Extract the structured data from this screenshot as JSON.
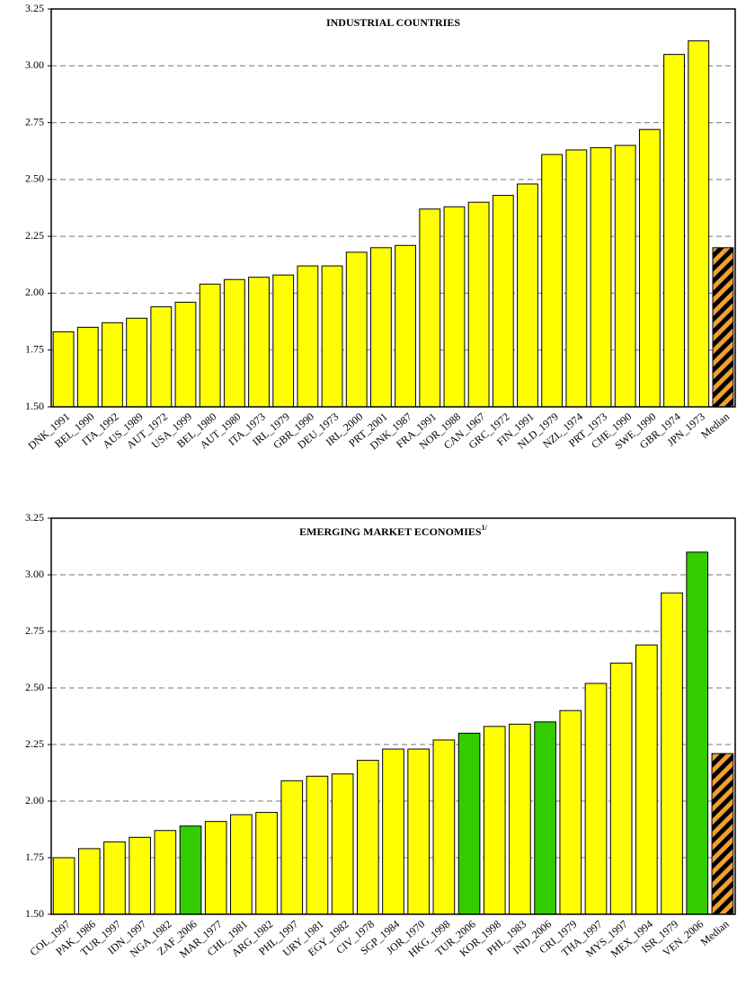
{
  "chart_data": [
    {
      "type": "bar",
      "title": "INDUSTRIAL COUNTRIES",
      "categories": [
        "DNK_1991",
        "BEL_1990",
        "ITA_1992",
        "AUS_1989",
        "AUT_1972",
        "USA_1999",
        "BEL_1980",
        "AUT_1980",
        "ITA_1973",
        "IRL_1979",
        "GBR_1990",
        "DEU_1973",
        "IRL_2000",
        "PRT_2001",
        "DNK_1987",
        "FRA_1991",
        "NOR_1988",
        "CAN_1967",
        "GRC_1972",
        "FIN_1991",
        "NLD_1979",
        "NZL_1974",
        "PRT_1973",
        "CHE_1990",
        "SWE_1990",
        "GBR_1974",
        "JPN_1973",
        "Median"
      ],
      "values": [
        1.83,
        1.85,
        1.87,
        1.89,
        1.94,
        1.96,
        2.04,
        2.06,
        2.07,
        2.08,
        2.12,
        2.12,
        2.18,
        2.2,
        2.21,
        2.37,
        2.38,
        2.4,
        2.43,
        2.48,
        2.61,
        2.63,
        2.64,
        2.65,
        2.72,
        3.05,
        3.11,
        2.2
      ],
      "colors": [
        "#ffff00",
        "#ffff00",
        "#ffff00",
        "#ffff00",
        "#ffff00",
        "#ffff00",
        "#ffff00",
        "#ffff00",
        "#ffff00",
        "#ffff00",
        "#ffff00",
        "#ffff00",
        "#ffff00",
        "#ffff00",
        "#ffff00",
        "#ffff00",
        "#ffff00",
        "#ffff00",
        "#ffff00",
        "#ffff00",
        "#ffff00",
        "#ffff00",
        "#ffff00",
        "#ffff00",
        "#ffff00",
        "#ffff00",
        "#ffff00",
        "#f0a030"
      ],
      "hatched": 27,
      "hatch_color": "#000000",
      "ylim": [
        1.5,
        3.25
      ],
      "yticks": [
        {
          "value": 1.5,
          "label": "1.50"
        },
        1.75,
        {
          "value": 2,
          "label": "2.00"
        },
        2.25,
        {
          "value": 2.5,
          "label": "2.50"
        },
        2.75,
        {
          "value": 3,
          "label": "3.00"
        },
        3.25
      ],
      "grid": true
    },
    {
      "type": "bar",
      "title": "EMERGING MARKET ECONOMIES",
      "title_note": "1/",
      "categories": [
        "COL_1997",
        "PAK_1986",
        "TUR_1997",
        "IDN_1997",
        "NGA_1982",
        "ZAF_2006",
        "MAR_1977",
        "CHL_1981",
        "ARG_1982",
        "PHL_1997",
        "URY_1981",
        "EGY_1982",
        "CIV_1978",
        "SGP_1984",
        "JOR_1970",
        "HKG_1998",
        "TUR_2006",
        "KOR_1998",
        "PHL_1983",
        "IND_2006",
        "CRI_1979",
        "THA_1997",
        "MYS_1997",
        "MEX_1994",
        "ISR_1979",
        "VEN_2006",
        "Median"
      ],
      "values": [
        1.75,
        1.79,
        1.82,
        1.84,
        1.87,
        1.89,
        1.91,
        1.94,
        1.95,
        2.09,
        2.11,
        2.12,
        2.18,
        2.23,
        2.23,
        2.27,
        2.3,
        2.33,
        2.34,
        2.35,
        2.4,
        2.52,
        2.61,
        2.69,
        2.92,
        3.1,
        2.21
      ],
      "colors": [
        "#ffff00",
        "#ffff00",
        "#ffff00",
        "#ffff00",
        "#ffff00",
        "#33cc00",
        "#ffff00",
        "#ffff00",
        "#ffff00",
        "#ffff00",
        "#ffff00",
        "#ffff00",
        "#ffff00",
        "#ffff00",
        "#ffff00",
        "#ffff00",
        "#33cc00",
        "#ffff00",
        "#ffff00",
        "#33cc00",
        "#ffff00",
        "#ffff00",
        "#ffff00",
        "#ffff00",
        "#ffff00",
        "#33cc00",
        "#f0a030"
      ],
      "hatched": 26,
      "hatch_color": "#000000",
      "ylim": [
        1.5,
        3.25
      ],
      "yticks": [
        {
          "value": 1.5,
          "label": "1.50"
        },
        1.75,
        {
          "value": 2,
          "label": "2.00"
        },
        2.25,
        {
          "value": 2.5,
          "label": "2.50"
        },
        2.75,
        {
          "value": 3,
          "label": "3.00"
        },
        3.25
      ],
      "grid": true
    }
  ]
}
